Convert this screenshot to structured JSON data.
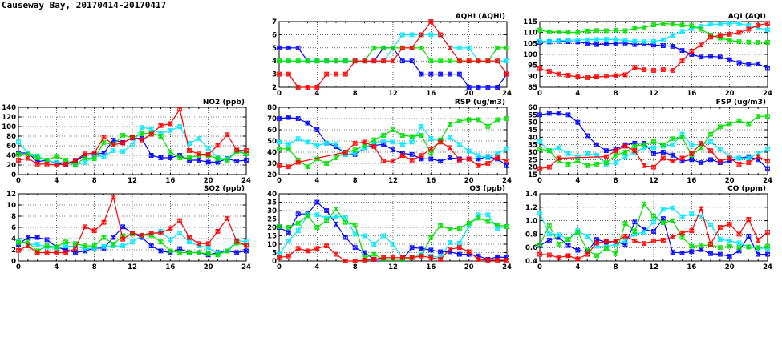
{
  "page_title": "Causeway Bay, 20170414-20170417",
  "series_colors": [
    "#0000ff",
    "#00e8ff",
    "#00e000",
    "#ff0000"
  ],
  "chart_data": [
    {
      "type": "line",
      "title": "AQHI (AQHI)",
      "ylim": [
        2,
        7
      ],
      "ystep": 1,
      "xlim": [
        0,
        24
      ],
      "xticks": [
        0,
        4,
        8,
        12,
        16,
        20,
        24
      ],
      "grid": true,
      "series": [
        {
          "color": "#0000ff",
          "values": [
            5,
            5,
            5,
            4,
            4,
            4,
            4,
            4,
            4,
            4,
            4,
            5,
            5,
            4,
            4,
            3,
            3,
            3,
            3,
            3,
            2,
            2,
            2,
            2,
            3
          ]
        },
        {
          "color": "#00e8ff",
          "values": [
            4,
            4,
            4,
            4,
            4,
            4,
            4,
            4,
            4,
            4,
            4,
            4,
            5,
            6,
            6,
            6,
            6,
            6,
            5,
            5,
            5,
            4,
            4,
            4,
            4
          ]
        },
        {
          "color": "#00e000",
          "values": [
            4,
            4,
            4,
            4,
            4,
            4,
            4,
            4,
            4,
            4,
            5,
            5,
            5,
            5,
            5,
            5,
            4,
            4,
            4,
            4,
            4,
            4,
            4,
            5,
            5
          ]
        },
        {
          "color": "#ff0000",
          "values": [
            3,
            3,
            2,
            2,
            2,
            3,
            3,
            3,
            4,
            4,
            4,
            4,
            4,
            5,
            5,
            6,
            7,
            6,
            5,
            4,
            4,
            4,
            4,
            4,
            3
          ]
        }
      ]
    },
    {
      "type": "line",
      "title": "AQI (AQI)",
      "ylim": [
        85,
        115
      ],
      "ystep": 5,
      "xlim": [
        0,
        24
      ],
      "xticks": [
        0,
        4,
        8,
        12,
        16,
        20,
        24
      ],
      "grid": true,
      "series": [
        {
          "color": "#0000ff",
          "values": [
            105.5,
            105.7,
            106,
            105.8,
            105.7,
            105,
            104.5,
            104.8,
            105,
            105.2,
            104.5,
            104.8,
            104.3,
            104,
            103.7,
            101.8,
            100,
            98.8,
            99.1,
            98.8,
            97.6,
            96.2,
            95.4,
            95.7,
            93.6
          ]
        },
        {
          "color": "#00e8ff",
          "values": [
            106,
            106,
            106.2,
            106.5,
            106.6,
            106.7,
            106.8,
            106.9,
            106.8,
            106.4,
            106,
            105.8,
            105.9,
            106.7,
            108.7,
            110.5,
            111.8,
            112.8,
            113.8,
            113.8,
            114.3,
            114.1,
            113.2,
            112,
            111.2
          ]
        },
        {
          "color": "#00e000",
          "values": [
            111.1,
            110.3,
            110.3,
            110.1,
            110,
            110.7,
            110.9,
            110.8,
            111.1,
            110.8,
            111.9,
            112.3,
            113.5,
            114.1,
            113.8,
            113.4,
            113.1,
            111.5,
            108.8,
            107.5,
            106.4,
            105.8,
            105.6,
            105.5,
            105.5
          ]
        },
        {
          "color": "#ff0000",
          "values": [
            93.5,
            92.3,
            91,
            90.5,
            89.7,
            89.4,
            89.7,
            90,
            90.3,
            90.7,
            94.1,
            93,
            92.7,
            93,
            92.7,
            97,
            101.5,
            104.3,
            107.9,
            108.7,
            109.2,
            110,
            111.5,
            113.3,
            114.2
          ]
        }
      ]
    },
    {
      "type": "line",
      "title": "NO2 (ppb)",
      "ylim": [
        0,
        140
      ],
      "ystep": 20,
      "xlim": [
        0,
        24
      ],
      "xticks": [
        0,
        4,
        8,
        12,
        16,
        20,
        24
      ],
      "grid": true,
      "series": [
        {
          "color": "#0000ff",
          "values": [
            45,
            45,
            27,
            30,
            24,
            20,
            28,
            40,
            42,
            45,
            72,
            67,
            76,
            75,
            40,
            35,
            35,
            40,
            30,
            30,
            26,
            26,
            33,
            28,
            30
          ]
        },
        {
          "color": "#00e8ff",
          "values": [
            68,
            45,
            39,
            30,
            25,
            25,
            20,
            25,
            38,
            38,
            50,
            48,
            62,
            98,
            95,
            86,
            92,
            100,
            65,
            75,
            55,
            35,
            32,
            50,
            45
          ]
        },
        {
          "color": "#00e000",
          "values": [
            42,
            42,
            35,
            30,
            38,
            30,
            20,
            35,
            33,
            67,
            62,
            82,
            77,
            85,
            87,
            80,
            47,
            35,
            35,
            40,
            40,
            33,
            30,
            48,
            43
          ]
        },
        {
          "color": "#ff0000",
          "values": [
            30,
            34,
            22,
            22,
            20,
            22,
            30,
            43,
            45,
            78,
            62,
            66,
            77,
            72,
            84,
            102,
            106,
            136,
            50,
            43,
            42,
            61,
            83,
            51,
            50
          ]
        }
      ]
    },
    {
      "type": "line",
      "title": "RSP (ug/m3)",
      "ylim": [
        20,
        80
      ],
      "ystep": 10,
      "xlim": [
        0,
        24
      ],
      "xticks": [
        0,
        4,
        8,
        12,
        16,
        20,
        24
      ],
      "grid": true,
      "series": [
        {
          "color": "#0000ff",
          "values": [
            70,
            71,
            70,
            66,
            60,
            48,
            45,
            38,
            38,
            44,
            46,
            47,
            42,
            39,
            38,
            34,
            34,
            32,
            35,
            34,
            34,
            34,
            36,
            34,
            28
          ]
        },
        {
          "color": "#00e8ff",
          "values": [
            49,
            47,
            52,
            49,
            46,
            48,
            47,
            38,
            39,
            44,
            48,
            50,
            49,
            47,
            49,
            63,
            52,
            50,
            53,
            47,
            41,
            37,
            35,
            39,
            43
          ]
        },
        {
          "color": "#00e000",
          "values": [
            43,
            43,
            33,
            27,
            34,
            30,
            35,
            40,
            42,
            46,
            51,
            55,
            60,
            55,
            54,
            55,
            39,
            51,
            65,
            68,
            69,
            69,
            63,
            69,
            70
          ]
        },
        {
          "color": "#ff0000",
          "values": [
            28,
            27,
            31,
            null,
            null,
            null,
            null,
            40,
            48,
            49,
            45,
            32,
            32,
            37,
            33,
            37,
            43,
            49,
            44,
            33,
            34,
            28,
            30,
            35,
            32
          ]
        }
      ]
    },
    {
      "type": "line",
      "title": "FSP (ug/m3)",
      "ylim": [
        15,
        60
      ],
      "ystep": 5,
      "xlim": [
        0,
        24
      ],
      "xticks": [
        0,
        4,
        8,
        12,
        16,
        20,
        24
      ],
      "grid": true,
      "series": [
        {
          "color": "#0000ff",
          "values": [
            55,
            56,
            56,
            55,
            50,
            41,
            35,
            31,
            32,
            35,
            36,
            36,
            29,
            30,
            28,
            24,
            25,
            23,
            25,
            23,
            24,
            26,
            27,
            25,
            19
          ]
        },
        {
          "color": "#00e8ff",
          "values": [
            37,
            31,
            33,
            29,
            27,
            29,
            28,
            22,
            23,
            27,
            30,
            33,
            33,
            34,
            35,
            42,
            35,
            35,
            37,
            32,
            27,
            26,
            26,
            29,
            32
          ]
        },
        {
          "color": "#00e000",
          "values": [
            32,
            31,
            24,
            22,
            24,
            21,
            22,
            23,
            28,
            30,
            34,
            35,
            37,
            35,
            39,
            40,
            28,
            33,
            42,
            47,
            49,
            51,
            49,
            54,
            54
          ]
        },
        {
          "color": "#ff0000",
          "values": [
            19,
            20,
            26,
            null,
            null,
            null,
            null,
            27,
            31,
            34,
            31,
            21,
            20,
            26,
            24,
            26,
            29,
            36,
            31,
            24,
            26,
            22,
            23,
            27,
            24
          ]
        }
      ]
    },
    {
      "type": "line",
      "title": "SO2 (ppb)",
      "ylim": [
        0,
        12
      ],
      "ystep": 2,
      "xlim": [
        0,
        24
      ],
      "xticks": [
        0,
        4,
        8,
        12,
        16,
        20,
        24
      ],
      "grid": true,
      "series": [
        {
          "color": "#0000ff",
          "values": [
            3,
            4.2,
            4.2,
            3.8,
            2.5,
            2,
            1.5,
            1.8,
            2.3,
            2.3,
            4.2,
            6.1,
            5,
            4.2,
            2.7,
            1.8,
            1.5,
            2.2,
            1.5,
            1.5,
            1.1,
            1.5,
            1.8,
            1.5,
            1.8
          ]
        },
        {
          "color": "#00e8ff",
          "values": [
            3.6,
            3,
            3,
            2.5,
            2.2,
            2.7,
            2.6,
            2.2,
            2.3,
            2.6,
            2.7,
            2.7,
            3.4,
            4.5,
            4.8,
            5.3,
            3.8,
            5,
            3.4,
            2.7,
            2.4,
            1.3,
            1.8,
            3.7,
            3.4
          ]
        },
        {
          "color": "#00e000",
          "values": [
            3.3,
            3.4,
            1.8,
            2.7,
            2.5,
            3.4,
            3.1,
            2.7,
            2.7,
            4.2,
            3,
            4.5,
            4.8,
            4.6,
            4.6,
            3.4,
            1.8,
            1.5,
            1.5,
            1.5,
            1.3,
            1.1,
            1.8,
            3.2,
            2.8
          ]
        },
        {
          "color": "#ff0000",
          "values": [
            1.9,
            2.7,
            1.5,
            1.5,
            1.5,
            1.5,
            2.2,
            6.1,
            5.4,
            6.9,
            11.4,
            3.9,
            5,
            4.6,
            5,
            5,
            5.8,
            7.2,
            4.2,
            3.1,
            3.1,
            5.3,
            7.6,
            3.5,
            2.8
          ]
        }
      ]
    },
    {
      "type": "line",
      "title": "O3 (ppb)",
      "ylim": [
        0,
        40
      ],
      "ystep": 5,
      "xlim": [
        0,
        24
      ],
      "xticks": [
        0,
        4,
        8,
        12,
        16,
        20,
        24
      ],
      "grid": true,
      "series": [
        {
          "color": "#0000ff",
          "values": [
            20,
            17,
            28,
            28,
            35,
            30,
            22,
            14,
            8,
            5,
            1,
            1,
            1,
            1,
            8,
            7.5,
            6.5,
            5.5,
            5.5,
            4,
            4,
            3,
            1,
            2.5,
            2
          ]
        },
        {
          "color": "#00e8ff",
          "values": [
            4,
            12,
            18,
            27.5,
            27.5,
            25.5,
            26.5,
            26,
            16,
            15,
            10,
            15,
            10,
            2,
            2,
            4,
            3,
            2,
            11,
            10.5,
            21,
            27.5,
            27.5,
            19.5,
            20.5
          ]
        },
        {
          "color": "#00e000",
          "values": [
            20.5,
            20,
            22.5,
            27,
            20,
            24,
            31,
            23,
            21.5,
            2,
            4,
            1,
            1,
            1,
            2,
            3,
            14,
            21,
            19,
            19.5,
            22.5,
            25.5,
            23.5,
            21.5,
            20.5
          ]
        },
        {
          "color": "#ff0000",
          "values": [
            2,
            3,
            7.5,
            6,
            7.5,
            9,
            4,
            0,
            0,
            0.5,
            1,
            2,
            2,
            2,
            2,
            3,
            2,
            1,
            7,
            8,
            5.5,
            1,
            0.5,
            0.5,
            0.5
          ]
        }
      ]
    },
    {
      "type": "line",
      "title": "CO (ppm)",
      "ylim": [
        0.4,
        1.4
      ],
      "ystep": 0.2,
      "xlim": [
        0,
        24
      ],
      "xticks": [
        0,
        4,
        8,
        12,
        16,
        20,
        24
      ],
      "grid": true,
      "series": [
        {
          "color": "#0000ff",
          "values": [
            0.63,
            0.71,
            0.75,
            0.63,
            0.56,
            0.54,
            0.72,
            0.68,
            0.69,
            0.64,
            0.98,
            0.87,
            0.84,
            1.03,
            0.53,
            0.52,
            0.54,
            0.57,
            0.51,
            0.5,
            0.47,
            0.55,
            0.77,
            0.5,
            0.5
          ]
        },
        {
          "color": "#00e8ff",
          "values": [
            1.11,
            0.8,
            0.79,
            0.72,
            0.85,
            0.77,
            0.62,
            0.61,
            0.65,
            0.7,
            0.8,
            0.83,
            0.98,
            1.17,
            1.19,
            1.06,
            1.1,
            1.06,
            0.94,
            0.72,
            0.7,
            0.67,
            0.61,
            0.59,
            0.59
          ]
        },
        {
          "color": "#00e000",
          "values": [
            0.64,
            0.93,
            0.65,
            0.72,
            0.83,
            0.56,
            0.48,
            0.59,
            0.51,
            0.96,
            0.84,
            1.25,
            1.07,
            0.97,
            1.0,
            0.75,
            0.62,
            0.63,
            0.64,
            0.6,
            0.62,
            0.6,
            0.61,
            0.6,
            0.62
          ]
        },
        {
          "color": "#ff0000",
          "values": [
            0.5,
            0.49,
            0.45,
            0.48,
            0.43,
            0.5,
            0.67,
            0.69,
            0.69,
            0.77,
            0.7,
            0.66,
            0.7,
            0.71,
            0.76,
            0.82,
            0.85,
            1.18,
            0.65,
            0.9,
            0.95,
            0.8,
            1.02,
            0.71,
            0.83
          ]
        }
      ]
    }
  ]
}
